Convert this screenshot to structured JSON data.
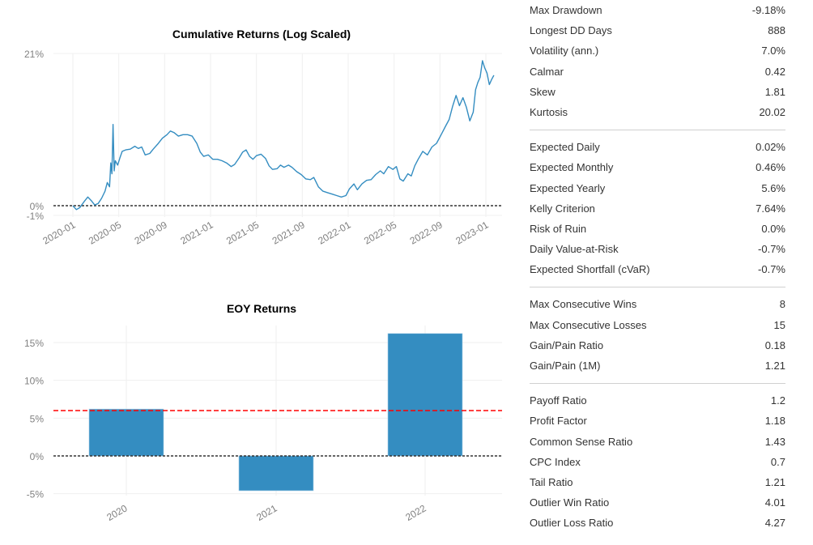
{
  "chart_data": [
    {
      "type": "line",
      "title": "Cumulative Returns (Log Scaled)",
      "xlabel": "",
      "ylabel": "",
      "y_ticks": [
        "21%",
        "0%",
        "-1%"
      ],
      "y_tick_values": [
        21,
        0,
        -1
      ],
      "ylim": [
        -1,
        21
      ],
      "x_ticks": [
        "2020-01",
        "2020-05",
        "2020-09",
        "2021-01",
        "2021-05",
        "2021-09",
        "2022-01",
        "2022-05",
        "2022-09",
        "2023-01"
      ],
      "x_range_months": [
        0,
        36
      ],
      "grid": true,
      "reference_line": {
        "value": 0,
        "style": "dashed",
        "color": "#333333"
      },
      "series": [
        {
          "name": "Cumulative Returns",
          "color": "#348dc1",
          "points_month_value": [
            [
              0.0,
              0.0
            ],
            [
              0.3,
              -0.4
            ],
            [
              0.6,
              -0.2
            ],
            [
              1.0,
              0.6
            ],
            [
              1.3,
              1.2
            ],
            [
              1.6,
              0.7
            ],
            [
              1.9,
              0.1
            ],
            [
              2.2,
              0.3
            ],
            [
              2.5,
              1.0
            ],
            [
              2.8,
              2.0
            ],
            [
              3.0,
              3.2
            ],
            [
              3.2,
              2.6
            ],
            [
              3.3,
              5.9
            ],
            [
              3.4,
              4.4
            ],
            [
              3.5,
              11.2
            ],
            [
              3.6,
              4.8
            ],
            [
              3.7,
              6.2
            ],
            [
              3.9,
              5.6
            ],
            [
              4.1,
              6.6
            ],
            [
              4.3,
              7.5
            ],
            [
              4.6,
              7.7
            ],
            [
              5.0,
              7.8
            ],
            [
              5.4,
              8.2
            ],
            [
              5.7,
              7.9
            ],
            [
              6.0,
              8.1
            ],
            [
              6.3,
              7.0
            ],
            [
              6.7,
              7.2
            ],
            [
              7.0,
              7.8
            ],
            [
              7.4,
              8.5
            ],
            [
              7.8,
              9.3
            ],
            [
              8.2,
              9.8
            ],
            [
              8.5,
              10.3
            ],
            [
              8.8,
              10.1
            ],
            [
              9.2,
              9.6
            ],
            [
              9.6,
              9.8
            ],
            [
              10.0,
              9.8
            ],
            [
              10.4,
              9.6
            ],
            [
              10.8,
              8.6
            ],
            [
              11.1,
              7.4
            ],
            [
              11.4,
              6.8
            ],
            [
              11.8,
              7.0
            ],
            [
              12.2,
              6.4
            ],
            [
              12.6,
              6.4
            ],
            [
              13.0,
              6.2
            ],
            [
              13.4,
              5.9
            ],
            [
              13.8,
              5.4
            ],
            [
              14.1,
              5.7
            ],
            [
              14.5,
              6.6
            ],
            [
              14.8,
              7.4
            ],
            [
              15.1,
              7.7
            ],
            [
              15.4,
              6.8
            ],
            [
              15.7,
              6.4
            ],
            [
              16.0,
              6.9
            ],
            [
              16.4,
              7.1
            ],
            [
              16.8,
              6.5
            ],
            [
              17.1,
              5.5
            ],
            [
              17.4,
              5.0
            ],
            [
              17.8,
              5.1
            ],
            [
              18.1,
              5.6
            ],
            [
              18.4,
              5.3
            ],
            [
              18.8,
              5.6
            ],
            [
              19.1,
              5.3
            ],
            [
              19.5,
              4.7
            ],
            [
              19.9,
              4.3
            ],
            [
              20.3,
              3.7
            ],
            [
              20.7,
              3.6
            ],
            [
              21.0,
              3.9
            ],
            [
              21.4,
              2.6
            ],
            [
              21.8,
              2.0
            ],
            [
              22.2,
              1.8
            ],
            [
              22.6,
              1.6
            ],
            [
              23.0,
              1.4
            ],
            [
              23.4,
              1.2
            ],
            [
              23.8,
              1.4
            ],
            [
              24.1,
              2.3
            ],
            [
              24.5,
              3.0
            ],
            [
              24.8,
              2.2
            ],
            [
              25.2,
              3.0
            ],
            [
              25.6,
              3.5
            ],
            [
              26.0,
              3.6
            ],
            [
              26.4,
              4.3
            ],
            [
              26.8,
              4.8
            ],
            [
              27.1,
              4.4
            ],
            [
              27.5,
              5.4
            ],
            [
              27.9,
              5.0
            ],
            [
              28.2,
              5.4
            ],
            [
              28.5,
              3.7
            ],
            [
              28.8,
              3.4
            ],
            [
              29.2,
              4.4
            ],
            [
              29.5,
              4.1
            ],
            [
              29.8,
              5.5
            ],
            [
              30.1,
              6.4
            ],
            [
              30.5,
              7.5
            ],
            [
              30.9,
              7.0
            ],
            [
              31.3,
              8.1
            ],
            [
              31.7,
              8.6
            ],
            [
              32.1,
              9.8
            ],
            [
              32.5,
              11.0
            ],
            [
              32.8,
              11.9
            ],
            [
              33.1,
              13.7
            ],
            [
              33.4,
              15.2
            ],
            [
              33.7,
              13.8
            ],
            [
              34.0,
              14.9
            ],
            [
              34.3,
              13.6
            ],
            [
              34.6,
              11.7
            ],
            [
              34.9,
              12.9
            ],
            [
              35.1,
              16.0
            ],
            [
              35.3,
              17.0
            ],
            [
              35.5,
              17.7
            ],
            [
              35.7,
              20.0
            ],
            [
              35.9,
              19.0
            ],
            [
              36.1,
              18.3
            ],
            [
              36.3,
              16.7
            ],
            [
              36.5,
              17.4
            ],
            [
              36.7,
              18.0
            ]
          ]
        }
      ]
    },
    {
      "type": "bar",
      "title": "EOY Returns",
      "xlabel": "",
      "ylabel": "",
      "categories": [
        "2020",
        "2021",
        "2022"
      ],
      "values": [
        6.2,
        -4.6,
        16.2
      ],
      "value_unit": "%",
      "y_ticks": [
        "15%",
        "10%",
        "5%",
        "0%",
        "-5%"
      ],
      "y_tick_values": [
        15,
        10,
        5,
        0,
        -5
      ],
      "ylim": [
        -5.5,
        17.5
      ],
      "grid": true,
      "bar_color": "#348dc1",
      "reference_lines": [
        {
          "name": "mean",
          "value": 6.0,
          "style": "dashed",
          "color": "#ff0000"
        },
        {
          "name": "zero",
          "value": 0,
          "style": "dashed",
          "color": "#333333"
        }
      ]
    }
  ],
  "metrics": {
    "groups": [
      [
        {
          "label": "Max Drawdown",
          "value": "-9.18%"
        },
        {
          "label": "Longest DD Days",
          "value": "888"
        },
        {
          "label": "Volatility (ann.)",
          "value": "7.0%"
        },
        {
          "label": "Calmar",
          "value": "0.42"
        },
        {
          "label": "Skew",
          "value": "1.81"
        },
        {
          "label": "Kurtosis",
          "value": "20.02"
        }
      ],
      [
        {
          "label": "Expected Daily",
          "value": "0.02%"
        },
        {
          "label": "Expected Monthly",
          "value": "0.46%"
        },
        {
          "label": "Expected Yearly",
          "value": "5.6%"
        },
        {
          "label": "Kelly Criterion",
          "value": "7.64%"
        },
        {
          "label": "Risk of Ruin",
          "value": "0.0%"
        },
        {
          "label": "Daily Value-at-Risk",
          "value": "-0.7%"
        },
        {
          "label": "Expected Shortfall (cVaR)",
          "value": "-0.7%"
        }
      ],
      [
        {
          "label": "Max Consecutive Wins",
          "value": "8"
        },
        {
          "label": "Max Consecutive Losses",
          "value": "15"
        },
        {
          "label": "Gain/Pain Ratio",
          "value": "0.18"
        },
        {
          "label": "Gain/Pain (1M)",
          "value": "1.21"
        }
      ],
      [
        {
          "label": "Payoff Ratio",
          "value": "1.2"
        },
        {
          "label": "Profit Factor",
          "value": "1.18"
        },
        {
          "label": "Common Sense Ratio",
          "value": "1.43"
        },
        {
          "label": "CPC Index",
          "value": "0.7"
        },
        {
          "label": "Tail Ratio",
          "value": "1.21"
        },
        {
          "label": "Outlier Win Ratio",
          "value": "4.01"
        },
        {
          "label": "Outlier Loss Ratio",
          "value": "4.27"
        }
      ]
    ]
  }
}
